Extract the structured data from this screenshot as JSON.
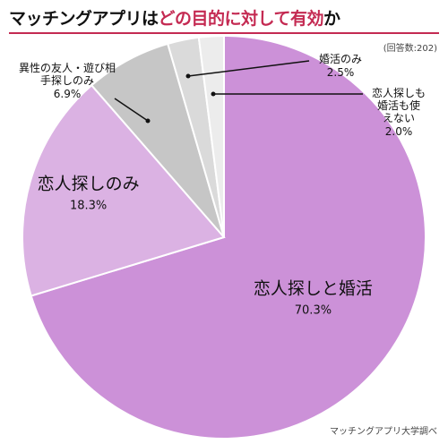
{
  "header": {
    "title_part1": "マッチングアプリは",
    "title_part2": "どの目的に対して有効",
    "title_part3": "か",
    "respondents": "(回答数:202)"
  },
  "footer": {
    "source": "マッチングアプリ大学調べ"
  },
  "colors": {
    "accent": "#c42a52",
    "slice_main": "#cc91d8",
    "slice_second": "#dbb2e3",
    "slice_third": "#c6c6c6",
    "slice_fourth": "#dadada",
    "slice_fifth": "#ececec"
  },
  "chart_data": {
    "type": "pie",
    "title": "マッチングアプリはどの目的に対して有効か",
    "slices": [
      {
        "name": "恋人探しと婚活",
        "value": 70.3,
        "label": "70.3%"
      },
      {
        "name": "恋人探しのみ",
        "value": 18.3,
        "label": "18.3%"
      },
      {
        "name": "異性の友人・遊び相手探しのみ",
        "value": 6.9,
        "label": "6.9%"
      },
      {
        "name": "婚活のみ",
        "value": 2.5,
        "label": "2.5%"
      },
      {
        "name": "恋人探しも婚活も使えない",
        "value": 2.0,
        "label": "2.0%"
      }
    ]
  }
}
